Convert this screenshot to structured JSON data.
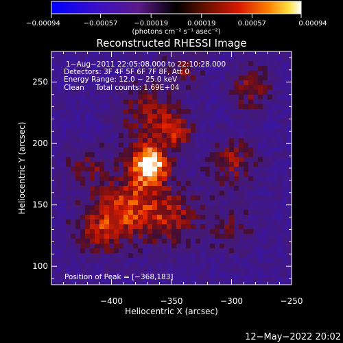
{
  "chart_data": {
    "type": "heatmap",
    "title": "Reconstructed RHESSI Image",
    "xlabel": "Heliocentric X (arcsec)",
    "ylabel": "Heliocentric Y (arcsec)",
    "xlim": [
      -450,
      -250
    ],
    "ylim": [
      85,
      275
    ],
    "x_ticks": [
      -400,
      -350,
      -300,
      -250
    ],
    "x_tick_labels": [
      "−400",
      "−350",
      "−300",
      "−250"
    ],
    "y_ticks": [
      100,
      150,
      200,
      250
    ],
    "y_tick_labels": [
      "100",
      "150",
      "200",
      "250"
    ],
    "colorbar": {
      "min": -0.00094,
      "max": 0.00094,
      "ticks": [
        -0.00094,
        -0.00057,
        -0.00019,
        0.00019,
        0.00057,
        0.00094
      ],
      "tick_labels": [
        "−0.00094",
        "−0.00057",
        "−0.00019",
        "0.00019",
        "0.00057",
        "0.00094"
      ],
      "unit_label": "(photons cm⁻² s⁻¹ asec⁻²)"
    },
    "annotations": [
      "1−Aug−2011 22:05:08.000 to 22:10:28.000",
      "Detectors: 3F 4F 5F 6F 7F 8F, Att 0",
      "Energy Range: 12.0 − 25.0 keV",
      "Clean     Total counts: 1.69E+04"
    ],
    "peak_label": "Position of Peak = [−368,183]",
    "peak": [
      -368,
      183
    ],
    "footer": "12−May−2022 20:02"
  }
}
